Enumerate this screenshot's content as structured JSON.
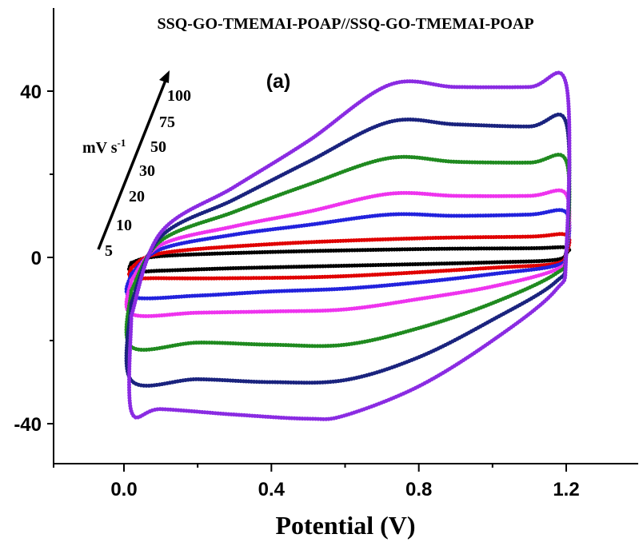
{
  "chart_data": {
    "type": "line",
    "title": "SSQ-GO-TMEMAI-POAP//SSQ-GO-TMEMAI-POAP",
    "panel_label": "(a)",
    "xlabel": "Potential (V)",
    "ylabel": "",
    "xlim": [
      -0.2,
      1.4
    ],
    "ylim": [
      -50,
      55
    ],
    "x_ticks": [
      0.0,
      0.4,
      0.8,
      1.2
    ],
    "x_tick_labels": [
      "0.0",
      "0.4",
      "0.8",
      "1.2"
    ],
    "y_ticks": [
      40,
      0,
      -40
    ],
    "y_tick_labels": [
      "40",
      "0",
      "-40"
    ],
    "grid": false,
    "annotation": {
      "unit_text": "mV s",
      "unit_superscript": "-1",
      "arrow_labels": [
        "5",
        "10",
        "20",
        "30",
        "50",
        "75",
        "100"
      ]
    },
    "series": [
      {
        "name": "5",
        "color": "#000000",
        "anodic": [
          [
            0.02,
            -1.3
          ],
          [
            0.1,
            0.3
          ],
          [
            0.4,
            1.3
          ],
          [
            0.8,
            2.0
          ],
          [
            1.1,
            2.2
          ],
          [
            1.2,
            2.4
          ]
        ],
        "cathodic": [
          [
            1.2,
            1.0
          ],
          [
            1.17,
            -0.6
          ],
          [
            1.0,
            -1.2
          ],
          [
            0.6,
            -2.0
          ],
          [
            0.3,
            -2.6
          ],
          [
            0.1,
            -3.2
          ],
          [
            0.02,
            -3.4
          ]
        ]
      },
      {
        "name": "10",
        "color": "#e00000",
        "anodic": [
          [
            0.02,
            -2.5
          ],
          [
            0.1,
            1.0
          ],
          [
            0.4,
            3.2
          ],
          [
            0.8,
            4.6
          ],
          [
            1.1,
            5.0
          ],
          [
            1.2,
            5.4
          ]
        ],
        "cathodic": [
          [
            1.2,
            1.0
          ],
          [
            1.17,
            -1.5
          ],
          [
            1.0,
            -2.5
          ],
          [
            0.6,
            -4.5
          ],
          [
            0.3,
            -5.0
          ],
          [
            0.1,
            -5.0
          ],
          [
            0.02,
            -4.8
          ]
        ]
      },
      {
        "name": "20",
        "color": "#2222dd",
        "anodic": [
          [
            0.02,
            -4.0
          ],
          [
            0.1,
            2.0
          ],
          [
            0.3,
            5.5
          ],
          [
            0.5,
            7.8
          ],
          [
            0.72,
            10.3
          ],
          [
            0.9,
            10.0
          ],
          [
            1.1,
            10.3
          ],
          [
            1.2,
            10.8
          ]
        ],
        "cathodic": [
          [
            1.2,
            1.0
          ],
          [
            1.17,
            -2.0
          ],
          [
            1.0,
            -4.0
          ],
          [
            0.8,
            -6.0
          ],
          [
            0.6,
            -7.5
          ],
          [
            0.4,
            -8.2
          ],
          [
            0.2,
            -9.2
          ],
          [
            0.02,
            -9.5
          ]
        ]
      },
      {
        "name": "30",
        "color": "#ee33ee",
        "anodic": [
          [
            0.02,
            -5.5
          ],
          [
            0.1,
            3.0
          ],
          [
            0.3,
            7.5
          ],
          [
            0.5,
            11.0
          ],
          [
            0.72,
            15.3
          ],
          [
            0.9,
            14.8
          ],
          [
            1.1,
            14.8
          ],
          [
            1.2,
            15.2
          ]
        ],
        "cathodic": [
          [
            1.2,
            1.0
          ],
          [
            1.17,
            -3.0
          ],
          [
            1.0,
            -7.0
          ],
          [
            0.8,
            -10.0
          ],
          [
            0.6,
            -12.5
          ],
          [
            0.4,
            -13.0
          ],
          [
            0.2,
            -13.3
          ],
          [
            0.02,
            -13.6
          ]
        ]
      },
      {
        "name": "50",
        "color": "#1f8a1f",
        "anodic": [
          [
            0.02,
            -8.0
          ],
          [
            0.1,
            4.0
          ],
          [
            0.3,
            11.0
          ],
          [
            0.5,
            17.5
          ],
          [
            0.72,
            23.9
          ],
          [
            0.9,
            23.0
          ],
          [
            1.1,
            22.8
          ],
          [
            1.2,
            23.2
          ]
        ],
        "cathodic": [
          [
            1.2,
            1.0
          ],
          [
            1.17,
            -4.0
          ],
          [
            1.0,
            -11.0
          ],
          [
            0.8,
            -17.0
          ],
          [
            0.6,
            -21.0
          ],
          [
            0.4,
            -21.0
          ],
          [
            0.2,
            -20.5
          ],
          [
            0.02,
            -21.5
          ]
        ]
      },
      {
        "name": "75",
        "color": "#1a237e",
        "anodic": [
          [
            0.02,
            -11.0
          ],
          [
            0.1,
            5.0
          ],
          [
            0.3,
            14.0
          ],
          [
            0.5,
            23.0
          ],
          [
            0.72,
            32.6
          ],
          [
            0.9,
            32.0
          ],
          [
            1.1,
            31.5
          ],
          [
            1.2,
            32.3
          ]
        ],
        "cathodic": [
          [
            1.2,
            1.0
          ],
          [
            1.17,
            -6.0
          ],
          [
            1.0,
            -15.0
          ],
          [
            0.8,
            -24.0
          ],
          [
            0.6,
            -29.5
          ],
          [
            0.4,
            -30.0
          ],
          [
            0.2,
            -29.3
          ],
          [
            0.02,
            -29.6
          ]
        ]
      },
      {
        "name": "100",
        "color": "#8a2be2",
        "anodic": [
          [
            0.02,
            -14.0
          ],
          [
            0.1,
            6.0
          ],
          [
            0.3,
            17.0
          ],
          [
            0.5,
            28.0
          ],
          [
            0.72,
            41.5
          ],
          [
            0.9,
            41.0
          ],
          [
            1.1,
            41.0
          ],
          [
            1.2,
            41.6
          ]
        ],
        "cathodic": [
          [
            1.2,
            1.0
          ],
          [
            1.17,
            -8.0
          ],
          [
            1.0,
            -20.0
          ],
          [
            0.8,
            -31.0
          ],
          [
            0.6,
            -38.0
          ],
          [
            0.5,
            -38.8
          ],
          [
            0.3,
            -37.8
          ],
          [
            0.1,
            -36.5
          ],
          [
            0.02,
            -37.0
          ]
        ]
      }
    ]
  }
}
